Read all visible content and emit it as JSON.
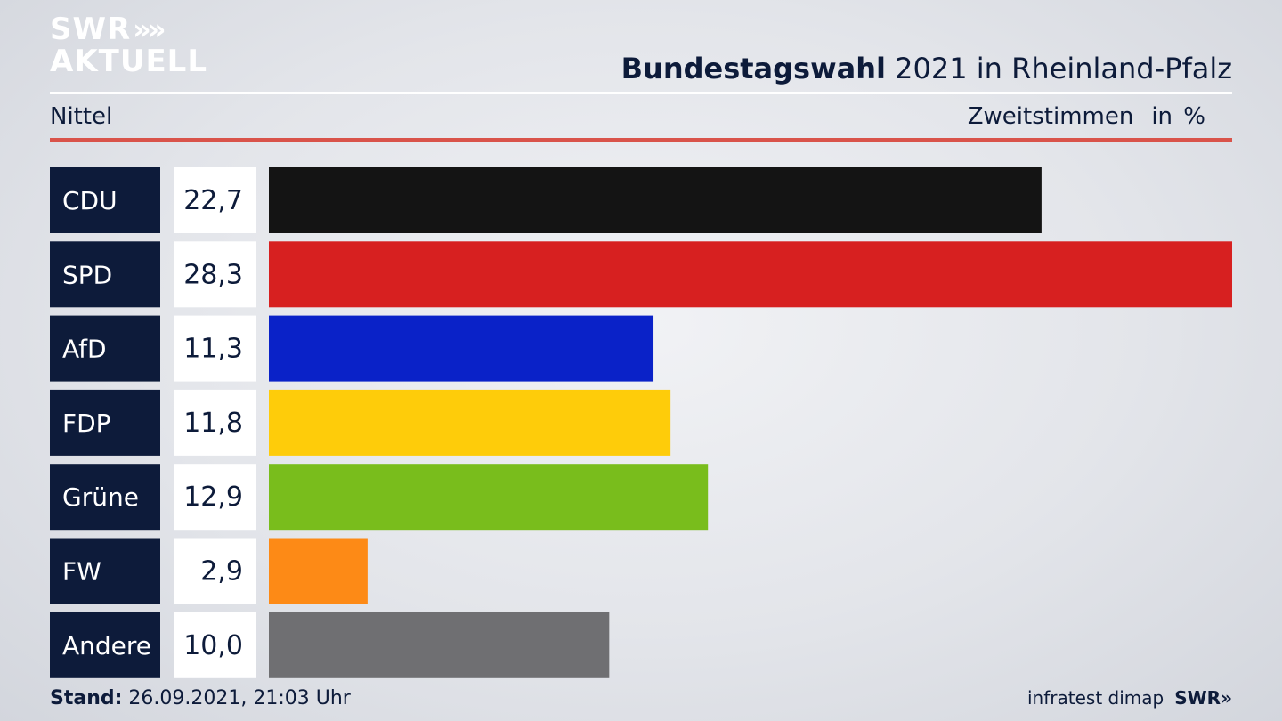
{
  "brand": {
    "line1": "SWR",
    "line2": "AKTUELL",
    "chevrons": "»"
  },
  "title": {
    "bold": "Bundestagswahl",
    "rest": " 2021 in Rheinland-Pfalz"
  },
  "region": "Nittel",
  "measure": {
    "label": "Zweitstimmen",
    "unit": "in %"
  },
  "footer": {
    "stand_label": "Stand:",
    "stand_value": " 26.09.2021, 21:03 Uhr",
    "source": "infratest dimap",
    "logo": "SWR»"
  },
  "chart_data": {
    "type": "bar",
    "orientation": "horizontal",
    "categories": [
      "CDU",
      "SPD",
      "AfD",
      "FDP",
      "Grüne",
      "FW",
      "Andere"
    ],
    "values": [
      22.7,
      28.3,
      11.3,
      11.8,
      12.9,
      2.9,
      10.0
    ],
    "value_labels": [
      "22,7",
      "28,3",
      "11,3",
      "11,8",
      "12,9",
      "2,9",
      "10,0"
    ],
    "colors": [
      "#141414",
      "#d72020",
      "#0a22c8",
      "#fecc0a",
      "#79bd1c",
      "#fd8a16",
      "#6f6f72"
    ],
    "xlim": [
      0,
      28.3
    ],
    "label_box_color": "#0d1b3a",
    "value_box_color": "#ffffff"
  }
}
